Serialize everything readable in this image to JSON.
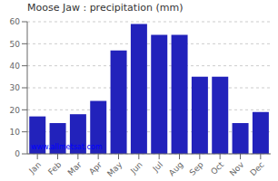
{
  "chart_data": {
    "type": "bar",
    "title": "Moose Jaw : precipitation (mm)",
    "categories": [
      "Jan",
      "Feb",
      "Mar",
      "Apr",
      "May",
      "Jun",
      "Jul",
      "Aug",
      "Sep",
      "Oct",
      "Nov",
      "Dec"
    ],
    "values": [
      17,
      14,
      18,
      24,
      47,
      59,
      54,
      54,
      35,
      35,
      14,
      19
    ],
    "color": "#2222bb",
    "ylim": [
      0,
      60
    ],
    "yticks": [
      0,
      10,
      20,
      30,
      40,
      50,
      60
    ],
    "grid": true,
    "annotations": [
      "www.allmetsat.com"
    ]
  }
}
